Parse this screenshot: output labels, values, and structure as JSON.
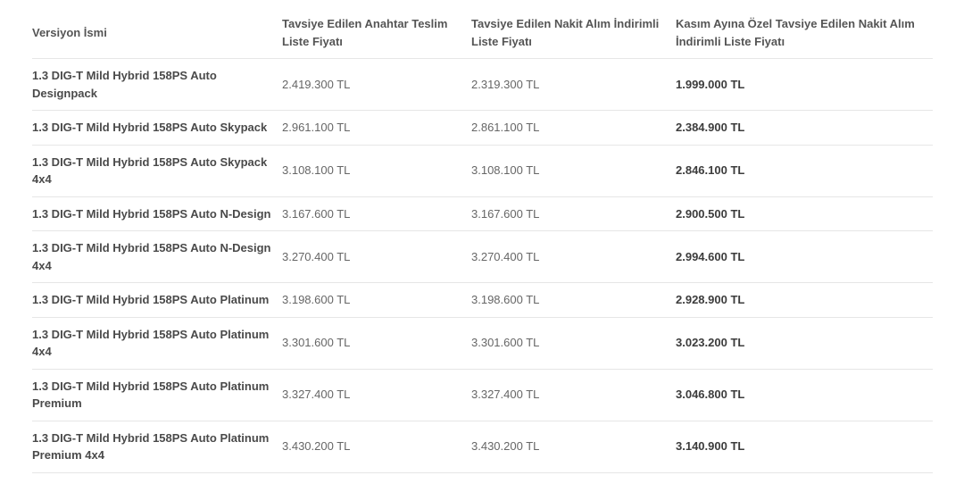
{
  "headers": [
    "Versiyon İsmi",
    "Tavsiye Edilen Anahtar Teslim Liste Fiyatı",
    "Tavsiye Edilen Nakit Alım İndirimli Liste Fiyatı",
    "Kasım Ayına Özel Tavsiye Edilen Nakit Alım İndirimli Liste Fiyatı"
  ],
  "rows": [
    {
      "name": "1.3 DIG-T Mild Hybrid 158PS Auto Designpack",
      "list": "2.419.300 TL",
      "cash": "2.319.300 TL",
      "special": "1.999.000 TL"
    },
    {
      "name": "1.3 DIG-T Mild Hybrid 158PS Auto Skypack",
      "list": "2.961.100 TL",
      "cash": "2.861.100 TL",
      "special": "2.384.900 TL"
    },
    {
      "name": "1.3 DIG-T Mild Hybrid 158PS Auto Skypack 4x4",
      "list": "3.108.100 TL",
      "cash": "3.108.100 TL",
      "special": "2.846.100 TL"
    },
    {
      "name": "1.3 DIG-T Mild Hybrid 158PS Auto N-Design",
      "list": "3.167.600 TL",
      "cash": "3.167.600 TL",
      "special": "2.900.500 TL"
    },
    {
      "name": "1.3 DIG-T Mild Hybrid 158PS Auto N-Design 4x4",
      "list": "3.270.400 TL",
      "cash": "3.270.400 TL",
      "special": "2.994.600 TL"
    },
    {
      "name": "1.3 DIG-T Mild Hybrid 158PS Auto Platinum",
      "list": "3.198.600 TL",
      "cash": "3.198.600 TL",
      "special": "2.928.900 TL"
    },
    {
      "name": "1.3 DIG-T Mild Hybrid 158PS Auto Platinum 4x4",
      "list": "3.301.600 TL",
      "cash": "3.301.600 TL",
      "special": "3.023.200 TL"
    },
    {
      "name": "1.3 DIG-T Mild Hybrid 158PS Auto Platinum Premium",
      "list": "3.327.400 TL",
      "cash": "3.327.400 TL",
      "special": "3.046.800 TL"
    },
    {
      "name": "1.3 DIG-T Mild Hybrid 158PS Auto Platinum Premium 4x4",
      "list": "3.430.200 TL",
      "cash": "3.430.200 TL",
      "special": "3.140.900 TL"
    }
  ]
}
